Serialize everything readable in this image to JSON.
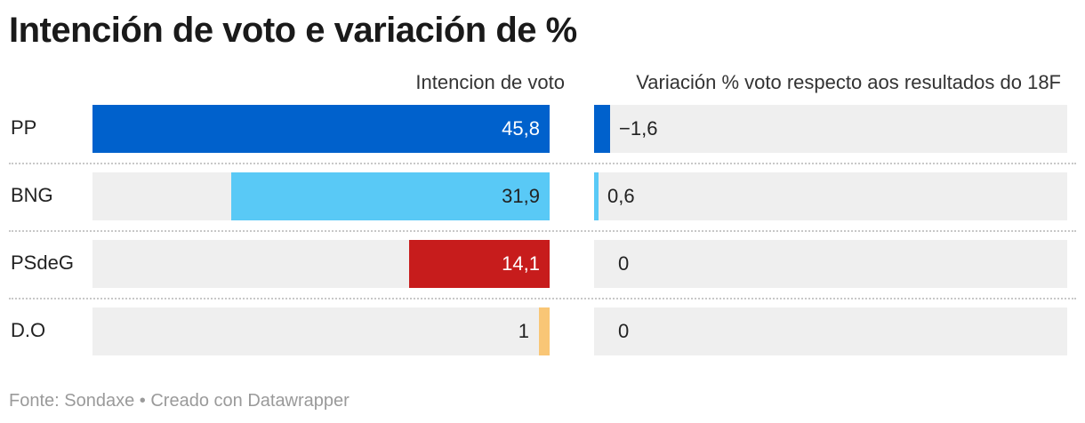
{
  "title": "Intención de voto e variación de %",
  "column_headers": {
    "vote": "Intencion de voto",
    "change": "Variación % voto respecto aos resultados do 18F"
  },
  "footer": {
    "source": "Fonte: Sondaxe",
    "separator": "•",
    "credit": "Creado con Datawrapper"
  },
  "chart_data": {
    "type": "bar",
    "title": "Intención de voto e variación de %",
    "categories": [
      "PP",
      "BNG",
      "PSdeG",
      "D.O"
    ],
    "series": [
      {
        "name": "Intencion de voto",
        "values": [
          45.8,
          31.9,
          14.1,
          1
        ],
        "labels": [
          "45,8",
          "31,9",
          "14,1",
          "1"
        ],
        "colors": [
          "#0061cc",
          "#59c9f6",
          "#c71c1c",
          "#f9c676"
        ],
        "xlim": [
          0,
          45.8
        ]
      },
      {
        "name": "Variación % voto respecto aos resultados do 18F",
        "values": [
          -1.6,
          0.6,
          0,
          0
        ],
        "labels": [
          "−1,6",
          "0,6",
          "0",
          "0"
        ],
        "colors": [
          "#0061cc",
          "#59c9f6",
          "#c71c1c",
          "#f9c676"
        ],
        "xlim": [
          0,
          100
        ]
      }
    ]
  }
}
